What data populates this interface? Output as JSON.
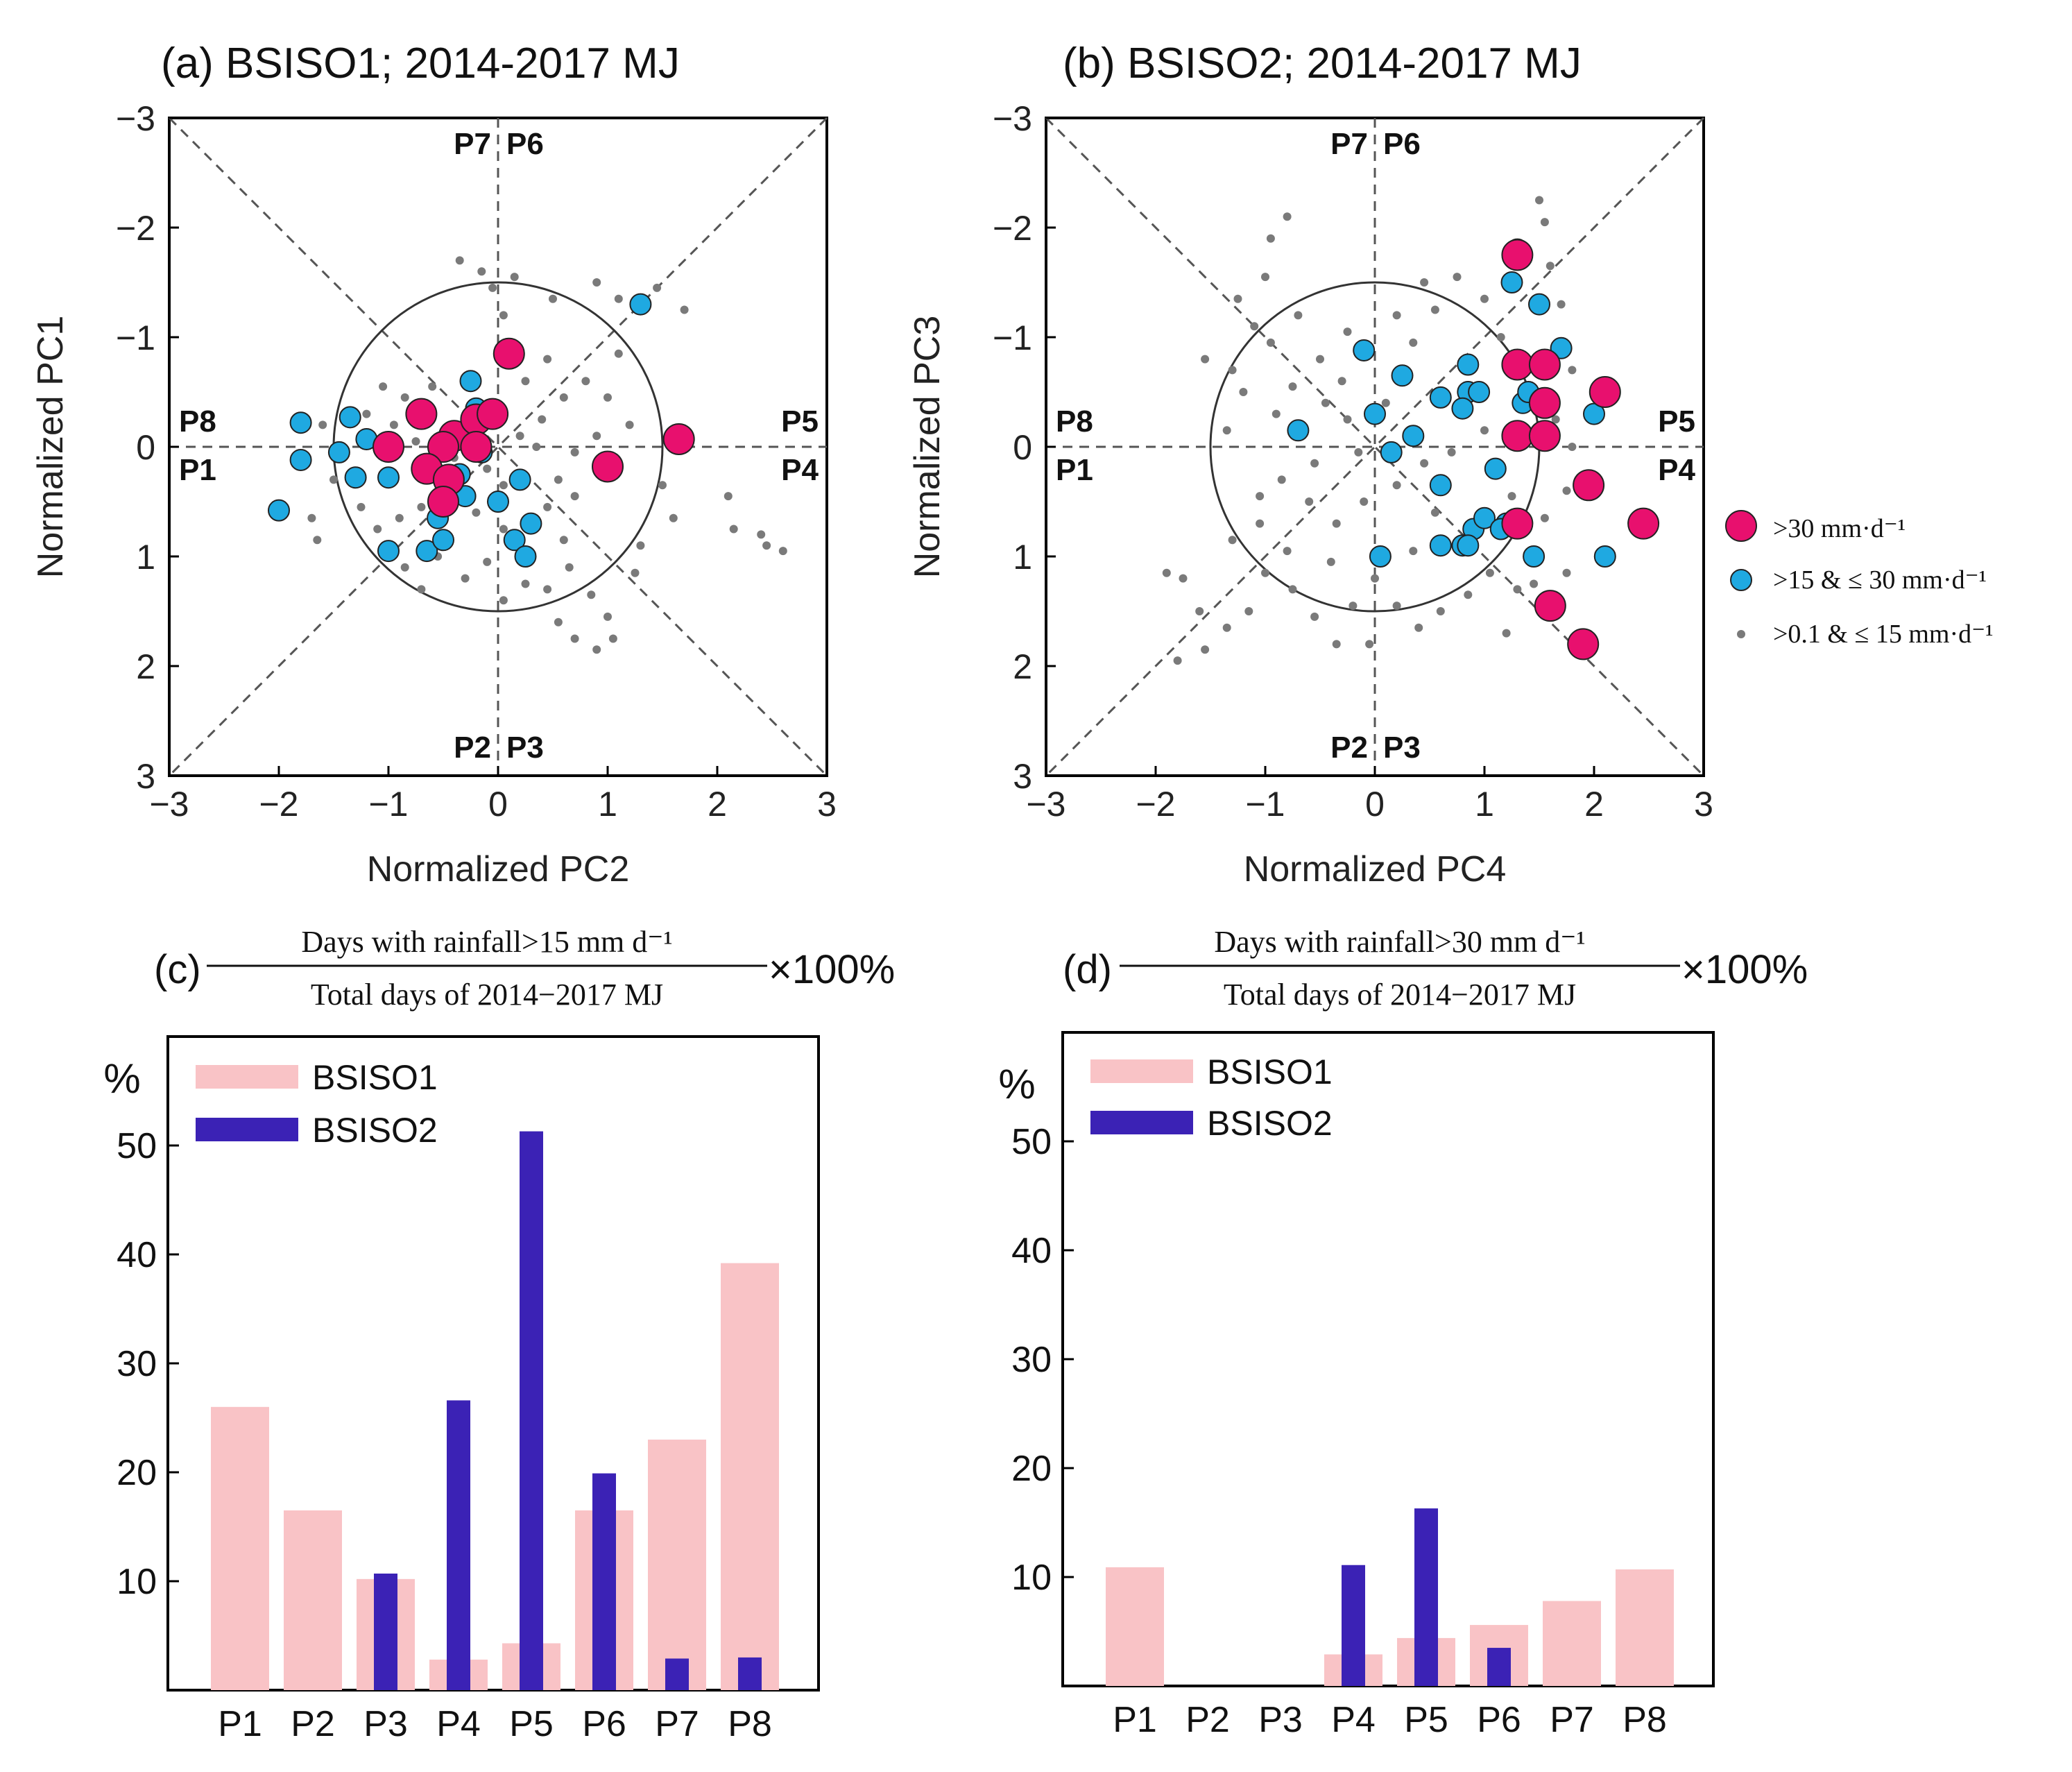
{
  "colors": {
    "strong": "#e8106e",
    "moderate": "#1fa9e1",
    "light": "#7a7a7a",
    "bsiso1": "#f9c3c6",
    "bsiso2": "#3b22b5"
  },
  "legend": {
    "strong": ">30 mm·d⁻¹",
    "moderate": ">15 & ≤ 30 mm·d⁻¹",
    "light": ">0.1 & ≤ 15 mm·d⁻¹"
  },
  "chart_data": [
    {
      "id": "a",
      "type": "scatter",
      "title": "(a) BSISO1; 2014-2017 MJ",
      "xlabel": "Normalized PC2",
      "ylabel": "Normalized PC1",
      "xlim": [
        -3,
        3
      ],
      "ylim": [
        -3,
        3
      ],
      "y_inverted": true,
      "xticks": [
        "−3",
        "−2",
        "−1",
        "0",
        "1",
        "2",
        "3"
      ],
      "yticks": [
        "−3",
        "−2",
        "−1",
        "0",
        "1",
        "2",
        "3"
      ],
      "phase_labels": {
        "top_left": "P7",
        "top_right": "P6",
        "left_upper": "P8",
        "left_lower": "P1",
        "right_upper": "P5",
        "right_lower": "P4",
        "bottom_left": "P2",
        "bottom_right": "P3"
      },
      "unit_circle_radius": 1.5,
      "series": [
        {
          "name": ">30 mm·d⁻¹",
          "points": [
            [
              0.1,
              -0.85
            ],
            [
              -0.7,
              -0.3
            ],
            [
              -0.4,
              -0.1
            ],
            [
              -0.2,
              -0.25
            ],
            [
              -0.05,
              -0.3
            ],
            [
              -0.2,
              0.0
            ],
            [
              -0.5,
              0.0
            ],
            [
              -1.0,
              0.0
            ],
            [
              -0.65,
              0.2
            ],
            [
              -0.45,
              0.3
            ],
            [
              -0.5,
              0.5
            ],
            [
              1.0,
              0.18
            ],
            [
              1.65,
              -0.07
            ]
          ]
        },
        {
          "name": ">15 & ≤ 30 mm·d⁻¹",
          "points": [
            [
              -2.0,
              0.58
            ],
            [
              -1.8,
              -0.22
            ],
            [
              -1.8,
              0.12
            ],
            [
              -1.35,
              -0.27
            ],
            [
              -1.2,
              -0.07
            ],
            [
              -1.3,
              0.28
            ],
            [
              -1.45,
              0.05
            ],
            [
              -1.0,
              0.28
            ],
            [
              -1.0,
              0.95
            ],
            [
              -0.65,
              0.95
            ],
            [
              -0.5,
              0.85
            ],
            [
              -0.55,
              0.65
            ],
            [
              -0.3,
              0.45
            ],
            [
              -0.25,
              -0.6
            ],
            [
              -0.2,
              -0.35
            ],
            [
              -0.15,
              0.05
            ],
            [
              0.0,
              0.5
            ],
            [
              0.2,
              0.3
            ],
            [
              0.15,
              0.85
            ],
            [
              0.3,
              0.7
            ],
            [
              0.25,
              1.0
            ],
            [
              1.3,
              -1.3
            ],
            [
              -0.35,
              0.25
            ]
          ]
        },
        {
          "name": ">0.1 & ≤ 15 mm·d⁻¹",
          "points": [
            [
              -1.6,
              -0.2
            ],
            [
              -1.5,
              0.3
            ],
            [
              -1.25,
              0.55
            ],
            [
              -1.1,
              0.75
            ],
            [
              -0.9,
              0.65
            ],
            [
              -0.85,
              1.1
            ],
            [
              -0.7,
              1.3
            ],
            [
              -0.55,
              1.0
            ],
            [
              -0.3,
              1.2
            ],
            [
              -0.1,
              1.05
            ],
            [
              0.05,
              1.4
            ],
            [
              0.25,
              1.25
            ],
            [
              0.45,
              1.3
            ],
            [
              0.65,
              1.1
            ],
            [
              0.85,
              1.35
            ],
            [
              1.0,
              1.55
            ],
            [
              1.05,
              1.75
            ],
            [
              0.9,
              1.85
            ],
            [
              0.7,
              1.75
            ],
            [
              0.55,
              1.6
            ],
            [
              1.5,
              0.35
            ],
            [
              1.6,
              0.65
            ],
            [
              1.3,
              0.9
            ],
            [
              2.1,
              0.45
            ],
            [
              2.15,
              0.75
            ],
            [
              2.4,
              0.8
            ],
            [
              2.6,
              0.95
            ],
            [
              2.45,
              0.9
            ],
            [
              0.4,
              -0.25
            ],
            [
              0.6,
              -0.45
            ],
            [
              0.8,
              -0.6
            ],
            [
              1.0,
              -0.45
            ],
            [
              1.1,
              -0.85
            ],
            [
              1.2,
              -0.2
            ],
            [
              0.9,
              -0.1
            ],
            [
              0.7,
              0.05
            ],
            [
              0.55,
              0.3
            ],
            [
              0.45,
              0.55
            ],
            [
              0.7,
              0.45
            ],
            [
              0.35,
              0.0
            ],
            [
              0.2,
              -0.1
            ],
            [
              0.25,
              -0.6
            ],
            [
              0.15,
              -0.9
            ],
            [
              0.45,
              -0.8
            ],
            [
              0.05,
              -1.2
            ],
            [
              -0.05,
              -1.45
            ],
            [
              -0.35,
              -1.7
            ],
            [
              -0.15,
              -1.6
            ],
            [
              0.15,
              -1.55
            ],
            [
              0.5,
              -1.35
            ],
            [
              0.9,
              -1.5
            ],
            [
              1.1,
              -1.35
            ],
            [
              1.45,
              -1.45
            ],
            [
              1.7,
              -1.25
            ],
            [
              -0.6,
              -0.55
            ],
            [
              -0.85,
              -0.45
            ],
            [
              -1.05,
              -0.55
            ],
            [
              -1.2,
              -0.3
            ],
            [
              -0.95,
              -0.2
            ],
            [
              -0.75,
              -0.05
            ],
            [
              -0.4,
              0.1
            ],
            [
              -0.1,
              0.2
            ],
            [
              0.05,
              0.35
            ],
            [
              -0.2,
              0.6
            ],
            [
              0.05,
              0.75
            ],
            [
              -0.7,
              0.55
            ],
            [
              -1.7,
              0.65
            ],
            [
              -1.65,
              0.85
            ],
            [
              -0.3,
              -0.2
            ],
            [
              0.6,
              0.85
            ],
            [
              1.25,
              1.15
            ]
          ]
        }
      ]
    },
    {
      "id": "b",
      "type": "scatter",
      "title": "(b) BSISO2; 2014-2017 MJ",
      "xlabel": "Normalized PC4",
      "ylabel": "Normalized PC3",
      "xlim": [
        -3,
        3
      ],
      "ylim": [
        -3,
        3
      ],
      "y_inverted": true,
      "xticks": [
        "−3",
        "−2",
        "−1",
        "0",
        "1",
        "2",
        "3"
      ],
      "yticks": [
        "−3",
        "−2",
        "−1",
        "0",
        "1",
        "2",
        "3"
      ],
      "phase_labels": {
        "top_left": "P7",
        "top_right": "P6",
        "left_upper": "P8",
        "left_lower": "P1",
        "right_upper": "P5",
        "right_lower": "P4",
        "bottom_left": "P2",
        "bottom_right": "P3"
      },
      "unit_circle_radius": 1.5,
      "series": [
        {
          "name": ">30 mm·d⁻¹",
          "points": [
            [
              1.3,
              -1.75
            ],
            [
              1.3,
              -0.75
            ],
            [
              1.55,
              -0.75
            ],
            [
              1.55,
              -0.4
            ],
            [
              1.3,
              -0.1
            ],
            [
              1.55,
              -0.1
            ],
            [
              2.1,
              -0.5
            ],
            [
              1.95,
              0.35
            ],
            [
              1.3,
              0.7
            ],
            [
              2.45,
              0.7
            ],
            [
              1.6,
              1.45
            ],
            [
              1.9,
              1.8
            ]
          ]
        },
        {
          "name": ">15 & ≤ 30 mm·d⁻¹",
          "points": [
            [
              1.3,
              -1.8
            ],
            [
              1.25,
              -1.5
            ],
            [
              1.5,
              -1.3
            ],
            [
              1.7,
              -0.9
            ],
            [
              1.35,
              -0.4
            ],
            [
              1.4,
              -0.5
            ],
            [
              2.0,
              -0.3
            ],
            [
              1.1,
              0.2
            ],
            [
              1.2,
              0.7
            ],
            [
              1.45,
              1.0
            ],
            [
              2.1,
              1.0
            ],
            [
              0.8,
              0.9
            ],
            [
              0.6,
              0.9
            ],
            [
              0.05,
              1.0
            ],
            [
              -0.7,
              -0.15
            ],
            [
              -0.1,
              -0.88
            ],
            [
              0.25,
              -0.65
            ],
            [
              0.0,
              -0.3
            ],
            [
              0.15,
              0.05
            ],
            [
              0.35,
              -0.1
            ],
            [
              0.6,
              -0.45
            ],
            [
              0.85,
              -0.75
            ],
            [
              0.85,
              -0.5
            ],
            [
              0.8,
              -0.35
            ],
            [
              0.95,
              -0.5
            ],
            [
              0.6,
              0.35
            ],
            [
              0.9,
              0.75
            ],
            [
              1.0,
              0.65
            ],
            [
              0.85,
              0.9
            ],
            [
              1.15,
              0.75
            ]
          ]
        },
        {
          "name": ">0.1 & ≤ 15 mm·d⁻¹",
          "points": [
            [
              -0.8,
              -2.1
            ],
            [
              -0.95,
              -1.9
            ],
            [
              -1.0,
              -1.55
            ],
            [
              -1.25,
              -1.35
            ],
            [
              -1.1,
              -1.1
            ],
            [
              -0.95,
              -0.95
            ],
            [
              -0.7,
              -1.2
            ],
            [
              -0.5,
              -0.8
            ],
            [
              -1.3,
              -0.7
            ],
            [
              -1.55,
              -0.8
            ],
            [
              -1.2,
              -0.5
            ],
            [
              -0.75,
              -0.55
            ],
            [
              -0.45,
              -0.4
            ],
            [
              -0.3,
              -0.6
            ],
            [
              -0.25,
              -0.25
            ],
            [
              -0.15,
              0.05
            ],
            [
              -0.55,
              0.15
            ],
            [
              -0.85,
              0.3
            ],
            [
              -0.6,
              0.5
            ],
            [
              -0.35,
              0.7
            ],
            [
              -0.1,
              0.5
            ],
            [
              0.2,
              0.35
            ],
            [
              0.45,
              0.15
            ],
            [
              0.7,
              0.05
            ],
            [
              0.35,
              -0.95
            ],
            [
              0.2,
              -1.2
            ],
            [
              0.55,
              -1.25
            ],
            [
              0.75,
              -1.55
            ],
            [
              1.0,
              -1.35
            ],
            [
              1.15,
              -1.0
            ],
            [
              1.6,
              -1.65
            ],
            [
              1.55,
              -2.05
            ],
            [
              1.5,
              -2.25
            ],
            [
              1.7,
              -1.3
            ],
            [
              1.8,
              -0.7
            ],
            [
              1.65,
              -0.25
            ],
            [
              1.8,
              0.0
            ],
            [
              1.75,
              0.4
            ],
            [
              1.55,
              0.65
            ],
            [
              1.45,
              1.25
            ],
            [
              1.75,
              1.15
            ],
            [
              1.3,
              1.3
            ],
            [
              1.2,
              1.7
            ],
            [
              1.05,
              1.15
            ],
            [
              0.85,
              1.35
            ],
            [
              0.6,
              1.5
            ],
            [
              0.4,
              1.65
            ],
            [
              0.2,
              1.45
            ],
            [
              0.0,
              1.2
            ],
            [
              -0.2,
              1.45
            ],
            [
              -0.35,
              1.8
            ],
            [
              -0.55,
              1.55
            ],
            [
              -0.75,
              1.3
            ],
            [
              -1.0,
              1.15
            ],
            [
              -1.15,
              1.5
            ],
            [
              -1.35,
              1.65
            ],
            [
              -1.6,
              1.5
            ],
            [
              -1.75,
              1.2
            ],
            [
              -1.9,
              1.15
            ],
            [
              -1.8,
              1.95
            ],
            [
              -1.55,
              1.85
            ],
            [
              -1.3,
              0.85
            ],
            [
              -1.05,
              0.7
            ],
            [
              -0.8,
              0.95
            ],
            [
              0.55,
              0.6
            ],
            [
              -0.4,
              1.05
            ],
            [
              -0.9,
              -0.3
            ],
            [
              -1.35,
              -0.15
            ],
            [
              -0.25,
              -1.05
            ],
            [
              0.1,
              -0.4
            ],
            [
              1.0,
              -0.15
            ],
            [
              0.35,
              0.95
            ],
            [
              -0.05,
              1.8
            ],
            [
              1.25,
              0.45
            ],
            [
              0.45,
              -1.5
            ],
            [
              -1.05,
              0.45
            ]
          ]
        }
      ]
    },
    {
      "id": "c",
      "type": "bar",
      "title_prefix": "(c)",
      "title_numerator": "Days with rainfall>15 mm d⁻¹",
      "title_denominator": "Total days of 2014−2017 MJ",
      "title_suffix": "×100%",
      "ylabel": "%",
      "ylim": [
        0,
        60
      ],
      "yticks": [
        "10",
        "20",
        "30",
        "40",
        "50"
      ],
      "categories": [
        "P1",
        "P2",
        "P3",
        "P4",
        "P5",
        "P6",
        "P7",
        "P8"
      ],
      "series": [
        {
          "name": "BSISO1",
          "values": [
            26,
            16.5,
            10.2,
            2.8,
            4.3,
            16.5,
            23,
            39.2
          ]
        },
        {
          "name": "BSISO2",
          "values": [
            0,
            0,
            10.7,
            26.6,
            51.3,
            19.9,
            2.9,
            3.0
          ]
        }
      ],
      "legend_position": "top-left"
    },
    {
      "id": "d",
      "type": "bar",
      "title_prefix": "(d)",
      "title_numerator": "Days with rainfall>30 mm d⁻¹",
      "title_denominator": "Total days of 2014−2017 MJ",
      "title_suffix": "×100%",
      "ylabel": "%",
      "ylim": [
        0,
        60
      ],
      "yticks": [
        "10",
        "20",
        "30",
        "40",
        "50"
      ],
      "categories": [
        "P1",
        "P2",
        "P3",
        "P4",
        "P5",
        "P6",
        "P7",
        "P8"
      ],
      "series": [
        {
          "name": "BSISO1",
          "values": [
            10.9,
            0,
            0,
            2.9,
            4.4,
            5.6,
            7.8,
            10.7
          ]
        },
        {
          "name": "BSISO2",
          "values": [
            0,
            0,
            0,
            11.1,
            16.3,
            3.5,
            0,
            0
          ]
        }
      ],
      "legend_position": "top-left"
    }
  ]
}
